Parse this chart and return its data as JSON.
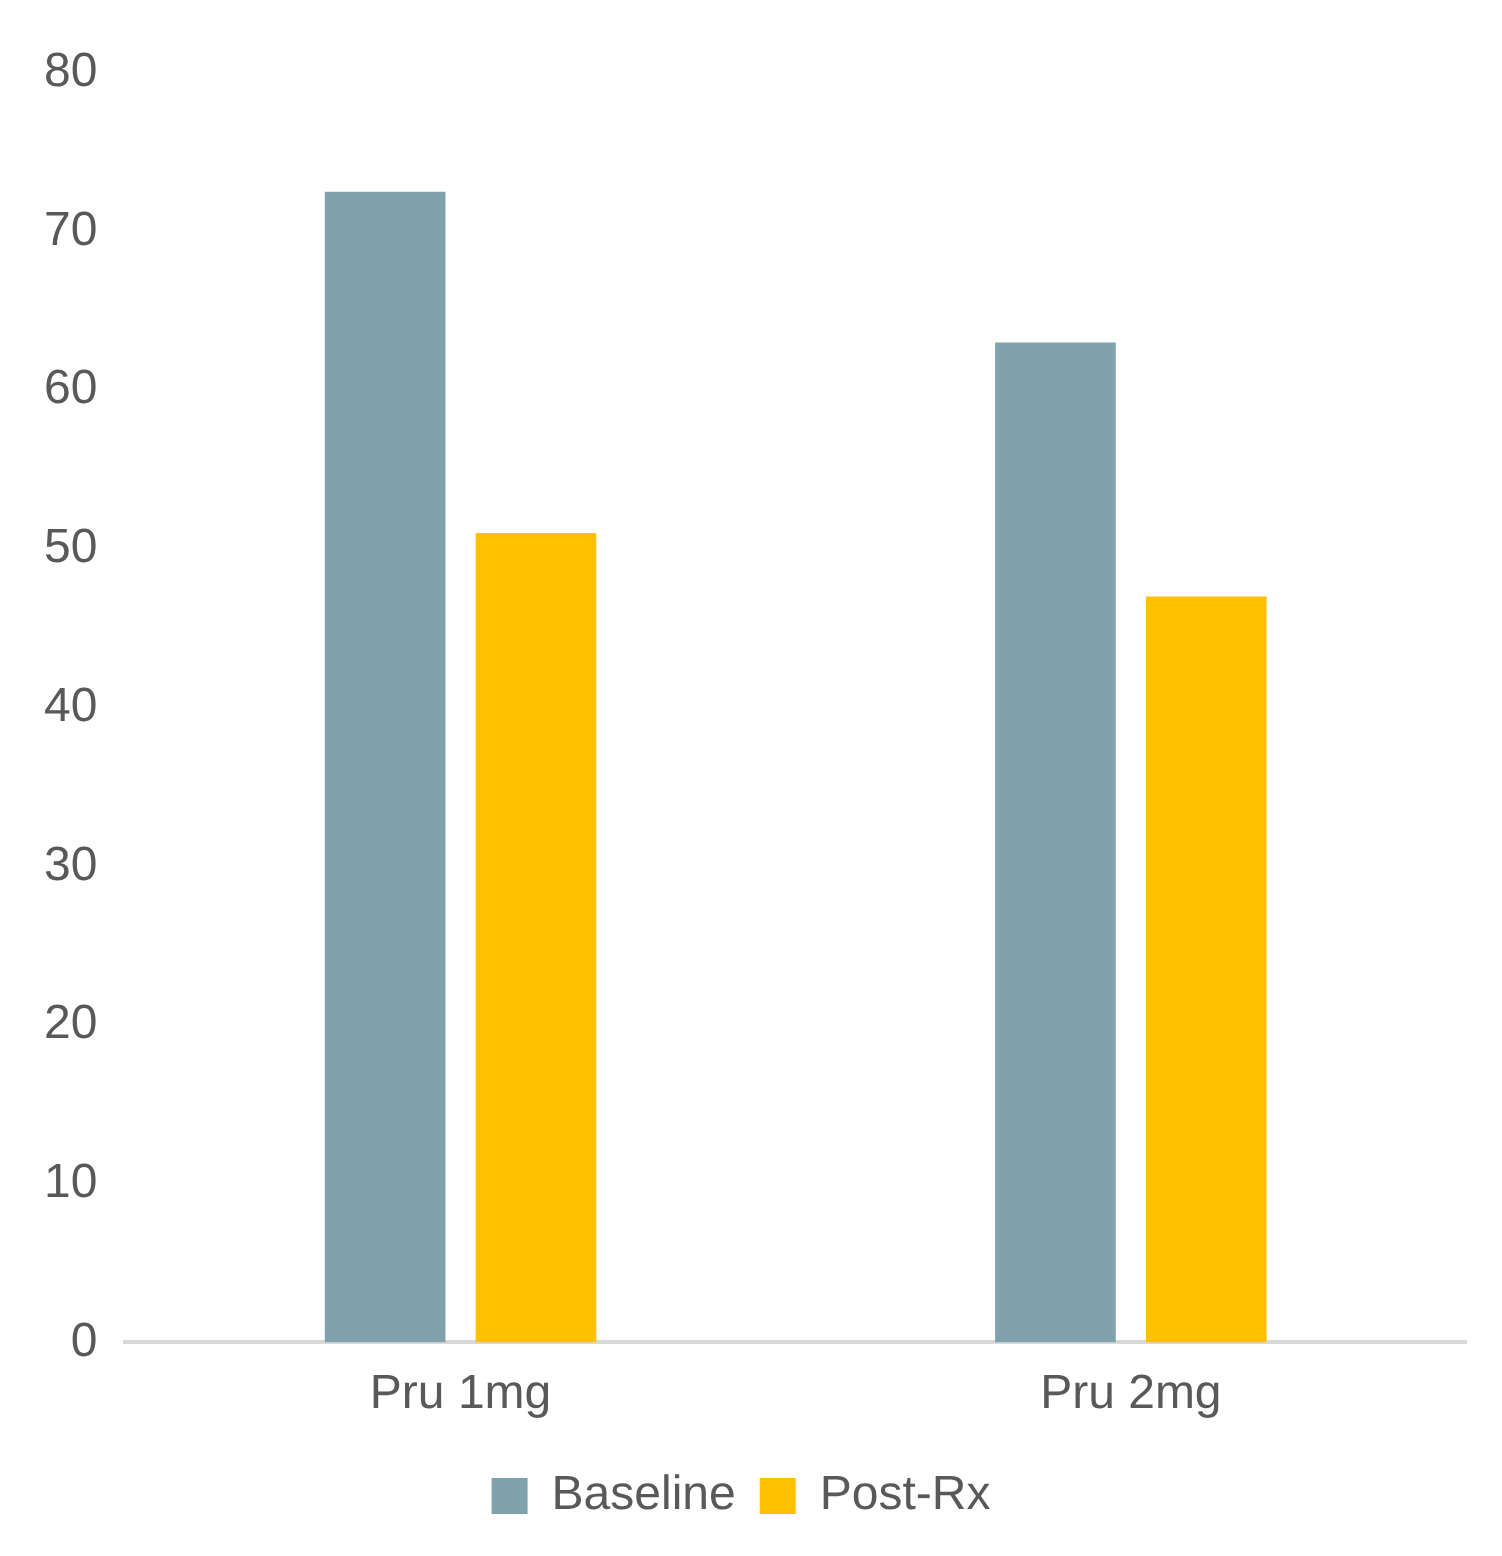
{
  "chart_data": {
    "type": "bar",
    "categories": [
      "Pru 1mg",
      "Pru 2mg"
    ],
    "series": [
      {
        "name": "Baseline",
        "color": "#7fa2ac",
        "values": [
          72.5,
          63
        ]
      },
      {
        "name": "Post-Rx",
        "color": "#ffc000",
        "values": [
          51,
          47
        ]
      }
    ],
    "ylim": [
      0,
      80
    ],
    "yticks": [
      0,
      10,
      20,
      30,
      40,
      50,
      60,
      70,
      80
    ],
    "grid": false,
    "legend": "bottom"
  }
}
